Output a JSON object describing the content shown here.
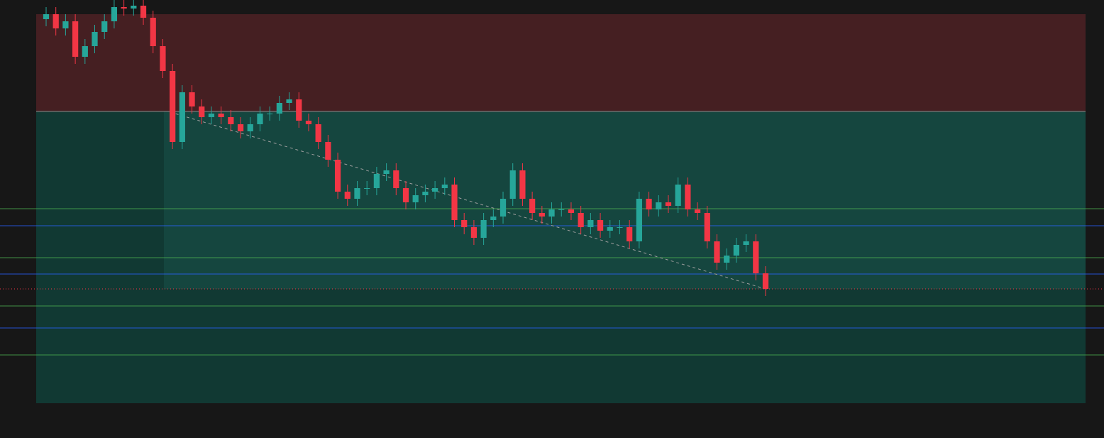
{
  "chart_data": {
    "type": "candlestick",
    "ylim": [
      0,
      617
    ],
    "up_color": "#26a69a",
    "down_color": "#f23645",
    "categories": [
      null,
      null,
      null,
      null,
      null,
      null,
      null,
      null,
      null,
      null,
      null,
      null,
      null,
      null,
      null,
      null,
      null,
      null,
      null,
      null,
      null,
      null,
      null,
      null,
      null,
      null,
      null,
      null,
      null,
      null,
      null,
      null,
      null,
      null,
      null,
      null,
      null,
      null,
      null,
      null,
      null,
      null,
      null,
      null,
      null,
      null,
      null,
      null,
      null,
      null,
      null,
      null,
      null,
      null,
      null,
      null,
      null,
      null,
      null,
      null,
      null,
      null,
      null,
      null,
      null,
      null,
      null,
      null,
      null,
      null,
      null,
      null,
      null,
      null,
      null
    ],
    "open": [
      590,
      597,
      577,
      587,
      537,
      552,
      572,
      587,
      607,
      605,
      609,
      592,
      552,
      517,
      417,
      487,
      467,
      452,
      457,
      452,
      442,
      432,
      442,
      457,
      457,
      472,
      477,
      447,
      442,
      417,
      392,
      347,
      337,
      352,
      352,
      372,
      377,
      352,
      332,
      342,
      347,
      352,
      357,
      307,
      297,
      282,
      307,
      312,
      337,
      377,
      337,
      317,
      312,
      322,
      322,
      317,
      297,
      307,
      292,
      297,
      297,
      277,
      337,
      322,
      332,
      327,
      357,
      322,
      317,
      277,
      247,
      257,
      272,
      277,
      232
    ],
    "high": [
      607,
      607,
      597,
      597,
      562,
      582,
      597,
      617,
      617,
      619,
      619,
      602,
      562,
      527,
      497,
      497,
      477,
      467,
      467,
      462,
      452,
      452,
      467,
      467,
      482,
      487,
      487,
      457,
      452,
      427,
      402,
      357,
      362,
      362,
      382,
      387,
      387,
      362,
      352,
      357,
      362,
      367,
      367,
      317,
      307,
      317,
      322,
      347,
      387,
      387,
      347,
      327,
      332,
      332,
      332,
      327,
      317,
      317,
      307,
      307,
      307,
      347,
      347,
      342,
      342,
      367,
      367,
      332,
      327,
      287,
      267,
      282,
      287,
      287,
      242
    ],
    "low": [
      580,
      567,
      567,
      527,
      527,
      542,
      562,
      577,
      595,
      595,
      582,
      542,
      507,
      407,
      407,
      457,
      442,
      442,
      442,
      432,
      422,
      422,
      432,
      447,
      447,
      462,
      437,
      432,
      407,
      382,
      337,
      327,
      327,
      342,
      342,
      362,
      342,
      322,
      322,
      332,
      337,
      342,
      297,
      287,
      272,
      272,
      297,
      302,
      327,
      327,
      307,
      302,
      302,
      312,
      307,
      287,
      287,
      282,
      282,
      287,
      267,
      267,
      312,
      312,
      317,
      317,
      312,
      307,
      267,
      237,
      237,
      247,
      262,
      222,
      200
    ],
    "close": [
      597,
      577,
      587,
      537,
      552,
      572,
      587,
      607,
      605,
      609,
      592,
      552,
      517,
      417,
      487,
      467,
      452,
      457,
      452,
      442,
      432,
      442,
      457,
      457,
      472,
      477,
      447,
      442,
      417,
      392,
      347,
      337,
      352,
      352,
      372,
      377,
      352,
      332,
      342,
      347,
      352,
      357,
      307,
      297,
      282,
      307,
      312,
      337,
      377,
      337,
      317,
      312,
      322,
      322,
      317,
      297,
      307,
      292,
      297,
      297,
      277,
      337,
      322,
      332,
      327,
      357,
      322,
      317,
      277,
      247,
      257,
      272,
      277,
      232,
      210
    ],
    "zones": [
      {
        "from": 460,
        "to": 597,
        "color": "#451f22"
      },
      {
        "from": 49,
        "to": 460,
        "color": "#15463f"
      }
    ],
    "levels": [
      {
        "value": 323,
        "color": "#4caf50"
      },
      {
        "value": 299,
        "color": "#2962ff"
      },
      {
        "value": 254,
        "color": "#4caf50"
      },
      {
        "value": 231,
        "color": "#2962ff"
      },
      {
        "value": 186,
        "color": "#4caf50"
      },
      {
        "value": 155,
        "color": "#2962ff"
      },
      {
        "value": 117,
        "color": "#4caf50"
      }
    ],
    "last_price": {
      "value": 210,
      "color": "#f23645"
    },
    "trend": {
      "start": 459,
      "end": 210,
      "color": "#9e9e9e"
    }
  }
}
